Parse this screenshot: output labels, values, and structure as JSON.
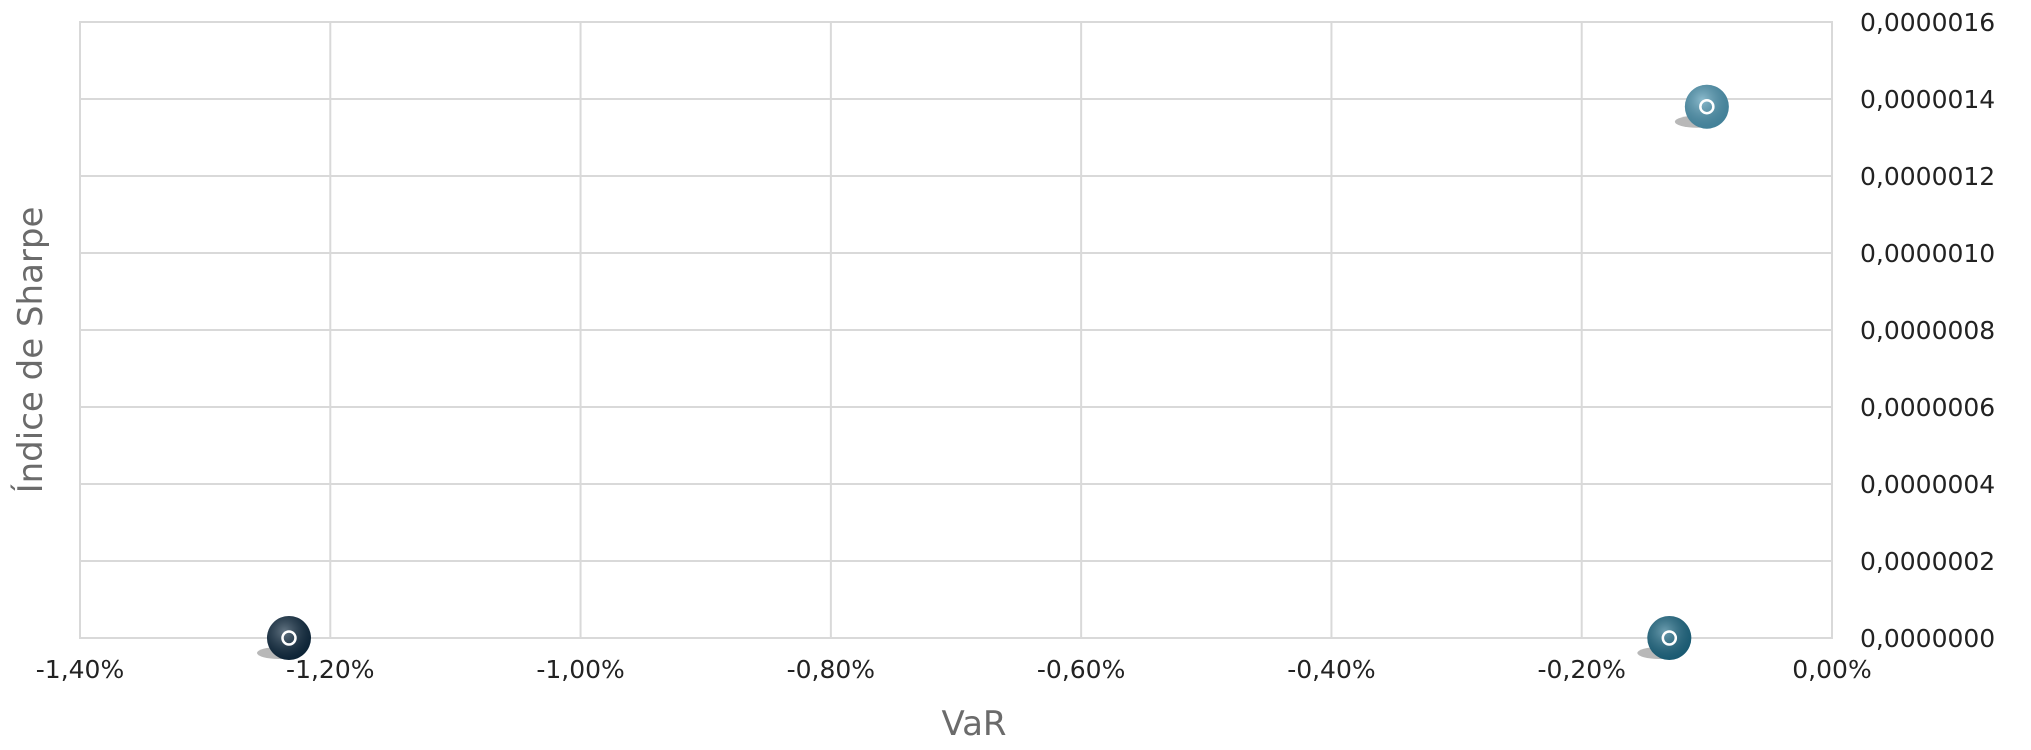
{
  "chart_data": {
    "type": "scatter",
    "title": "",
    "xlabel": "VaR",
    "ylabel": "Índice de Sharpe",
    "xlim": [
      -0.014,
      0.0
    ],
    "ylim": [
      0.0,
      1.6e-06
    ],
    "x_ticks": [
      -0.014,
      -0.012,
      -0.01,
      -0.008,
      -0.006,
      -0.004,
      -0.002,
      0.0
    ],
    "x_tick_labels": [
      "-1,40%",
      "-1,20%",
      "-1,00%",
      "-0,80%",
      "-0,60%",
      "-0,40%",
      "-0,20%",
      "0,00%"
    ],
    "y_ticks": [
      0.0,
      2e-07,
      4e-07,
      6e-07,
      8e-07,
      1e-06,
      1.2e-06,
      1.4e-06,
      1.6e-06
    ],
    "y_tick_labels": [
      "0,0000000",
      "0,0000002",
      "0,0000004",
      "0,0000006",
      "0,0000008",
      "0,0000010",
      "0,0000012",
      "0,0000014",
      "0,0000016"
    ],
    "y_axis_side": "right",
    "grid": true,
    "legend": "none",
    "points": [
      {
        "x": -0.01233,
        "y": 0.0,
        "color": "#0f2a40"
      },
      {
        "x": -0.0013,
        "y": 0.0,
        "color": "#1e6a86"
      },
      {
        "x": -0.001,
        "y": 1.38e-06,
        "color": "#4f98b4"
      }
    ]
  }
}
